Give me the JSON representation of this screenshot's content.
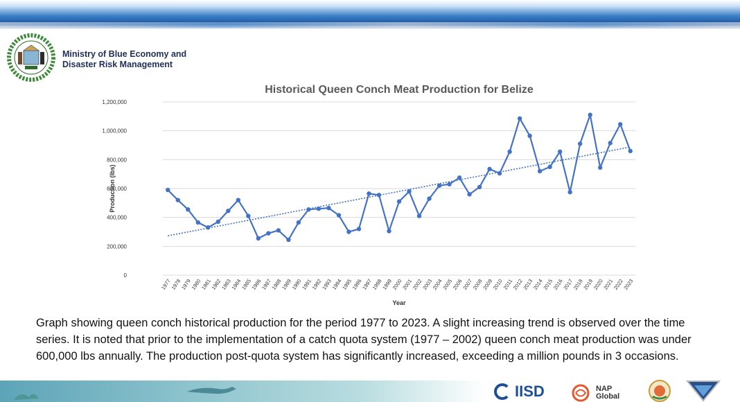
{
  "header": {
    "ministry_line1": "Ministry of Blue Economy and",
    "ministry_line2": "Disaster Risk Management"
  },
  "caption": "Graph showing queen conch historical production for the period 1977 to 2023. A slight increasing trend is observed over the time series. It is noted that prior to the implementation of a catch quota system (1977 – 2002) queen conch meat production was under 600,000 lbs annually. The production post-quota system has significantly increased, exceeding a million pounds in 3 occasions.",
  "partners": {
    "iisd": "IISD",
    "nap_line1": "NAP",
    "nap_line2": "Global"
  },
  "colors": {
    "series": "#4472c4",
    "trend": "#4472c4",
    "grid": "#d9d9d9",
    "text": "#595959"
  },
  "chart_data": {
    "type": "line",
    "title": "Historical Queen Conch Meat Production for Belize",
    "xlabel": "Year",
    "ylabel": "Production (lbs)",
    "ylim": [
      0,
      1200000
    ],
    "yticks": [
      0,
      200000,
      400000,
      600000,
      800000,
      1000000,
      1200000
    ],
    "ytick_labels": [
      "0",
      "200,000",
      "400,000",
      "600,000",
      "800,000",
      "1,000,000",
      "1,200,000"
    ],
    "grid": true,
    "trendline": "linear",
    "x": [
      "1977",
      "1978",
      "1979",
      "1980",
      "1981",
      "1982",
      "1983",
      "1984",
      "1985",
      "1986",
      "1987",
      "1988",
      "1989",
      "1990",
      "1991",
      "1992",
      "1993",
      "1994",
      "1995",
      "1996",
      "1997",
      "1998",
      "1999",
      "2000",
      "2001",
      "2002",
      "2003",
      "2004",
      "2005",
      "2006",
      "2007",
      "2008",
      "2009",
      "2010",
      "2011",
      "2012",
      "2013",
      "2014",
      "2015",
      "2016",
      "2017",
      "2018",
      "2019",
      "2020",
      "2021",
      "2022",
      "2023"
    ],
    "values": [
      590000,
      520000,
      455000,
      365000,
      330000,
      370000,
      445000,
      520000,
      410000,
      255000,
      290000,
      310000,
      245000,
      365000,
      455000,
      460000,
      465000,
      415000,
      300000,
      320000,
      565000,
      555000,
      305000,
      510000,
      580000,
      410000,
      530000,
      620000,
      630000,
      675000,
      560000,
      610000,
      735000,
      705000,
      855000,
      1085000,
      965000,
      720000,
      750000,
      855000,
      575000,
      910000,
      1110000,
      745000,
      915000,
      1045000,
      860000
    ]
  }
}
